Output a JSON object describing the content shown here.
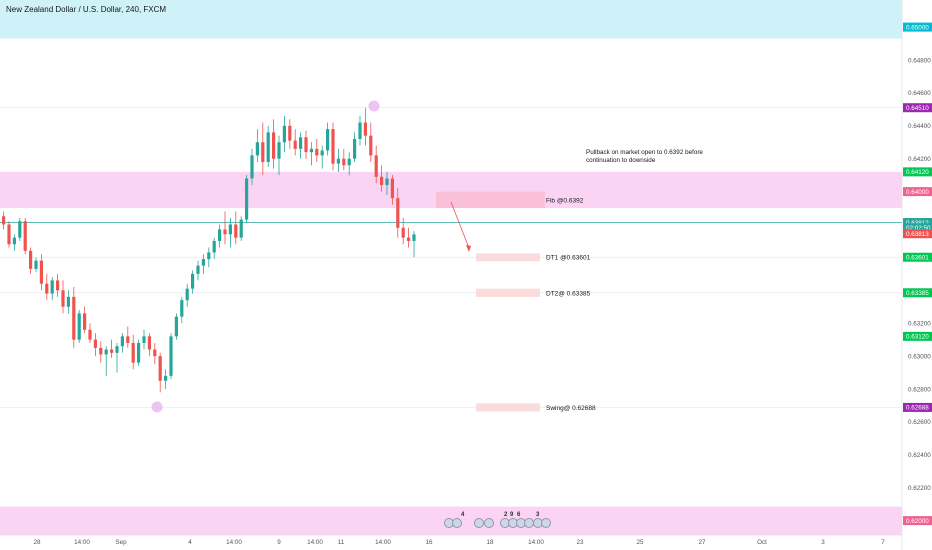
{
  "header": {
    "symbol_title": "New Zealand Dollar / U.S. Dollar, 240, FXCM"
  },
  "chart_data": {
    "type": "candlestick",
    "title": "New Zealand Dollar / U.S. Dollar, 240, FXCM",
    "y_ticks": [
      0.648,
      0.646,
      0.644,
      0.642,
      0.632,
      0.63,
      0.628,
      0.626,
      0.624,
      0.622
    ],
    "x_ticks": [
      "28",
      "14:00",
      "Sep",
      "4",
      "14:00",
      "9",
      "14:00",
      "11",
      "14:00",
      "16",
      "18",
      "14:00",
      "23",
      "25",
      "27",
      "Oct",
      "3",
      "7"
    ],
    "price_tags": [
      {
        "label": "0.65000",
        "value": 0.65,
        "color": "#00bcd4"
      },
      {
        "label": "0.64510",
        "value": 0.6451,
        "color": "#9c27b0"
      },
      {
        "label": "0.64120",
        "value": 0.6412,
        "color": "#00c853"
      },
      {
        "label": "0.64000",
        "value": 0.64,
        "color": "#f06292"
      },
      {
        "label": "0.63812",
        "value": 0.63812,
        "color": "#26a69a"
      },
      {
        "label": "02:02:50",
        "value": 0.6378,
        "color": "#26a69a"
      },
      {
        "label": "0.63813",
        "value": 0.63744,
        "color": "#ef5350"
      },
      {
        "label": "0.63601",
        "value": 0.63601,
        "color": "#00c853"
      },
      {
        "label": "0.63385",
        "value": 0.63385,
        "color": "#00c853"
      },
      {
        "label": "0.63120",
        "value": 0.6312,
        "color": "#00c853"
      },
      {
        "label": "0.62688",
        "value": 0.62688,
        "color": "#9c27b0"
      },
      {
        "label": "0.62000",
        "value": 0.62,
        "color": "#f06292"
      }
    ],
    "zones": [
      {
        "top": 0.6529,
        "bottom": 0.6493,
        "color": "#cff2f8"
      },
      {
        "top": 0.6412,
        "bottom": 0.639,
        "color": "#fbd3f3"
      },
      {
        "top": 0.62085,
        "bottom": 0.6191,
        "color": "#fbd3f3"
      }
    ],
    "targets": [
      {
        "label": "Fib @0.6392",
        "value": 0.6395,
        "top": 0.64,
        "bottom": 0.639,
        "color": "#f9c0d8"
      },
      {
        "label": "DT1 @0.63601",
        "value": 0.63601,
        "top": 0.63625,
        "bottom": 0.63577,
        "color": "#fbdcdc"
      },
      {
        "label": "DT2@ 0.63385",
        "value": 0.63385,
        "top": 0.6341,
        "bottom": 0.6336,
        "color": "#fbdcdc"
      },
      {
        "label": "Swing@ 0.62688",
        "value": 0.62688,
        "top": 0.62713,
        "bottom": 0.62663,
        "color": "#fbdcdc"
      }
    ],
    "annotation": {
      "line1": "Pullback on market open to 0.6392 before",
      "line2": "continuation to downside"
    },
    "event_counts": [
      "4",
      "2",
      "9",
      "6",
      "3"
    ],
    "candles": [
      [
        0.6385,
        0.6388,
        0.6377,
        0.638
      ],
      [
        0.638,
        0.6382,
        0.6366,
        0.6368
      ],
      [
        0.6368,
        0.6374,
        0.6364,
        0.6372
      ],
      [
        0.6372,
        0.6384,
        0.637,
        0.6382
      ],
      [
        0.6382,
        0.6384,
        0.6362,
        0.6364
      ],
      [
        0.6364,
        0.6366,
        0.635,
        0.6353
      ],
      [
        0.6353,
        0.636,
        0.6351,
        0.6358
      ],
      [
        0.6358,
        0.6362,
        0.634,
        0.6344
      ],
      [
        0.6344,
        0.635,
        0.6334,
        0.6338
      ],
      [
        0.6338,
        0.6348,
        0.6334,
        0.6346
      ],
      [
        0.6346,
        0.635,
        0.6336,
        0.634
      ],
      [
        0.634,
        0.6346,
        0.6326,
        0.633
      ],
      [
        0.633,
        0.634,
        0.6326,
        0.6336
      ],
      [
        0.6336,
        0.6342,
        0.6305,
        0.631
      ],
      [
        0.631,
        0.6328,
        0.6308,
        0.6326
      ],
      [
        0.6326,
        0.633,
        0.6314,
        0.6316
      ],
      [
        0.6316,
        0.632,
        0.6308,
        0.631
      ],
      [
        0.631,
        0.6314,
        0.63,
        0.6305
      ],
      [
        0.6305,
        0.6309,
        0.6296,
        0.6301
      ],
      [
        0.6301,
        0.6306,
        0.6288,
        0.6304
      ],
      [
        0.6304,
        0.631,
        0.6299,
        0.6302
      ],
      [
        0.6302,
        0.6308,
        0.629,
        0.6306
      ],
      [
        0.6306,
        0.6314,
        0.6302,
        0.6312
      ],
      [
        0.6312,
        0.6318,
        0.6305,
        0.6308
      ],
      [
        0.6308,
        0.6313,
        0.6292,
        0.6296
      ],
      [
        0.6296,
        0.631,
        0.6294,
        0.6308
      ],
      [
        0.6308,
        0.6316,
        0.6304,
        0.6312
      ],
      [
        0.6312,
        0.6314,
        0.63,
        0.6304
      ],
      [
        0.6304,
        0.6308,
        0.6295,
        0.63
      ],
      [
        0.63,
        0.6302,
        0.6278,
        0.6285
      ],
      [
        0.6285,
        0.6292,
        0.628,
        0.6288
      ],
      [
        0.6288,
        0.6314,
        0.6286,
        0.6312
      ],
      [
        0.6312,
        0.6326,
        0.631,
        0.6324
      ],
      [
        0.6324,
        0.6336,
        0.632,
        0.6334
      ],
      [
        0.6334,
        0.6344,
        0.633,
        0.6341
      ],
      [
        0.6341,
        0.6352,
        0.6338,
        0.635
      ],
      [
        0.635,
        0.6358,
        0.6346,
        0.6355
      ],
      [
        0.6355,
        0.6362,
        0.635,
        0.6359
      ],
      [
        0.6359,
        0.6366,
        0.6354,
        0.6363
      ],
      [
        0.6363,
        0.6372,
        0.6359,
        0.637
      ],
      [
        0.637,
        0.638,
        0.6366,
        0.6377
      ],
      [
        0.6377,
        0.6388,
        0.6368,
        0.6374
      ],
      [
        0.6374,
        0.6384,
        0.6366,
        0.638
      ],
      [
        0.638,
        0.6388,
        0.6368,
        0.6372
      ],
      [
        0.6372,
        0.6385,
        0.637,
        0.6383
      ],
      [
        0.6383,
        0.641,
        0.6381,
        0.6408
      ],
      [
        0.6408,
        0.6426,
        0.6404,
        0.6422
      ],
      [
        0.6422,
        0.6438,
        0.6418,
        0.643
      ],
      [
        0.643,
        0.6442,
        0.641,
        0.6418
      ],
      [
        0.6418,
        0.644,
        0.6415,
        0.6436
      ],
      [
        0.6436,
        0.6444,
        0.6414,
        0.642
      ],
      [
        0.642,
        0.6434,
        0.641,
        0.643
      ],
      [
        0.643,
        0.6446,
        0.6424,
        0.644
      ],
      [
        0.644,
        0.6444,
        0.6426,
        0.6431
      ],
      [
        0.6431,
        0.6438,
        0.6422,
        0.6426
      ],
      [
        0.6426,
        0.6436,
        0.642,
        0.6433
      ],
      [
        0.6433,
        0.6437,
        0.642,
        0.6424
      ],
      [
        0.6424,
        0.643,
        0.6416,
        0.6426
      ],
      [
        0.6426,
        0.6432,
        0.6418,
        0.6422
      ],
      [
        0.6422,
        0.6428,
        0.6414,
        0.6425
      ],
      [
        0.6425,
        0.6442,
        0.6422,
        0.6438
      ],
      [
        0.6438,
        0.6442,
        0.6413,
        0.6417
      ],
      [
        0.6417,
        0.6426,
        0.6412,
        0.642
      ],
      [
        0.642,
        0.6426,
        0.6413,
        0.6416
      ],
      [
        0.6416,
        0.6424,
        0.641,
        0.642
      ],
      [
        0.642,
        0.6436,
        0.6418,
        0.6432
      ],
      [
        0.6432,
        0.6446,
        0.6428,
        0.6442
      ],
      [
        0.6442,
        0.6451,
        0.6428,
        0.6434
      ],
      [
        0.6434,
        0.6442,
        0.6418,
        0.6422
      ],
      [
        0.6422,
        0.6428,
        0.6405,
        0.6409
      ],
      [
        0.6409,
        0.6416,
        0.64,
        0.6404
      ],
      [
        0.6404,
        0.6412,
        0.6398,
        0.6408
      ],
      [
        0.6408,
        0.641,
        0.6392,
        0.6396
      ],
      [
        0.6396,
        0.6402,
        0.6372,
        0.6378
      ],
      [
        0.6378,
        0.6384,
        0.6368,
        0.6372
      ],
      [
        0.6372,
        0.6378,
        0.6366,
        0.637
      ],
      [
        0.637,
        0.6376,
        0.636,
        0.6374
      ]
    ]
  }
}
